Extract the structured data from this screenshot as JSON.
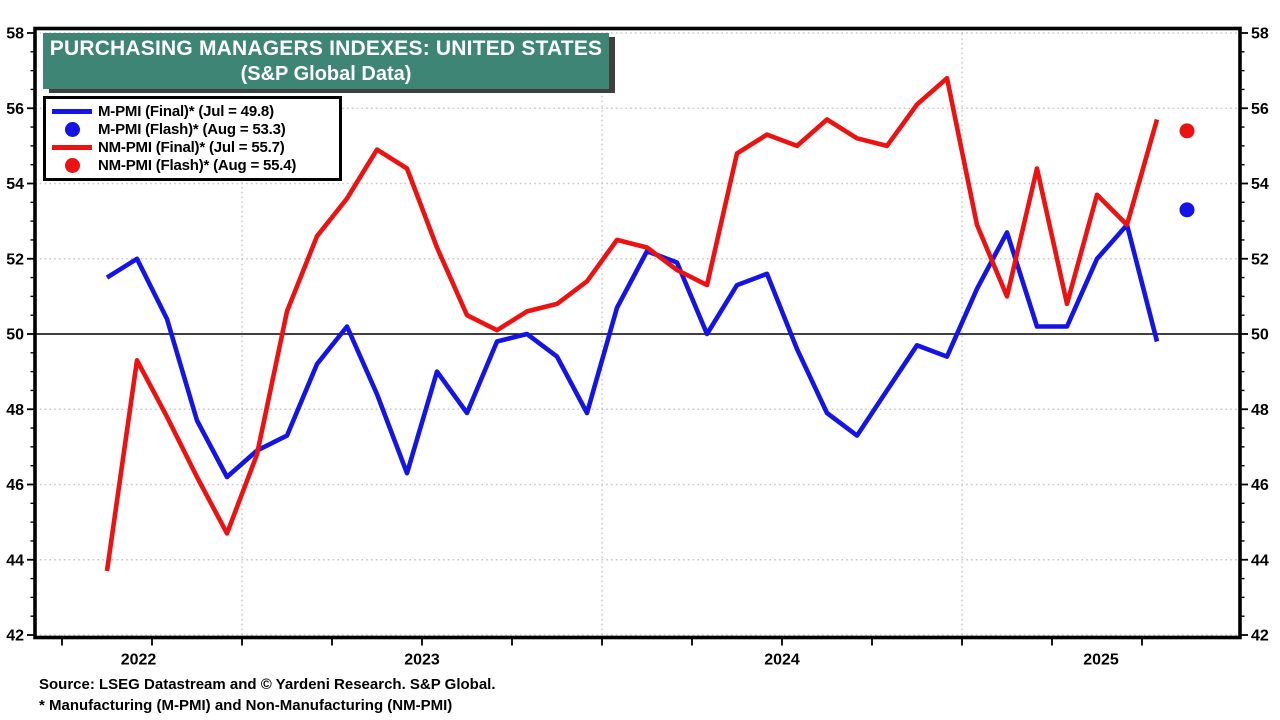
{
  "title": {
    "line1": "PURCHASING MANAGERS INDEXES: UNITED STATES",
    "line2": "(S&P Global Data)",
    "banner_color": "#3e8576"
  },
  "legend": {
    "items": [
      {
        "swatch": "line",
        "color": "#1414e6",
        "label": "M-PMI (Final)* (Jul = 49.8)"
      },
      {
        "swatch": "dot",
        "color": "#1414e6",
        "label": "M-PMI (Flash)* (Aug = 53.3)"
      },
      {
        "swatch": "line",
        "color": "#ed1212",
        "label": "NM-PMI (Final)* (Jul = 55.7)"
      },
      {
        "swatch": "dot",
        "color": "#ed1212",
        "label": "NM-PMI (Flash)* (Aug = 55.4)"
      }
    ]
  },
  "footer": {
    "source": "Source: LSEG Datastream and © Yardeni Research. S&P Global.",
    "footnote": "* Manufacturing (M-PMI) and Non-Manufacturing (NM-PMI)"
  },
  "chart_data": {
    "type": "line",
    "title": "Purchasing Managers Indexes: United States (S&P Global Data)",
    "ylim": [
      42,
      58
    ],
    "y_major_step": 2,
    "y_minor_step": 0.5,
    "baseline": 50,
    "grid": "dotted horizontal at even values, dotted vertical at year starts, solid line at 50",
    "x_year_labels": [
      "2022",
      "2023",
      "2024",
      "2025"
    ],
    "months": [
      "Aug 2022",
      "Sep 2022",
      "Oct 2022",
      "Nov 2022",
      "Dec 2022",
      "Jan 2023",
      "Feb 2023",
      "Mar 2023",
      "Apr 2023",
      "May 2023",
      "Jun 2023",
      "Jul 2023",
      "Aug 2023",
      "Sep 2023",
      "Oct 2023",
      "Nov 2023",
      "Dec 2023",
      "Jan 2024",
      "Feb 2024",
      "Mar 2024",
      "Apr 2024",
      "May 2024",
      "Jun 2024",
      "Jul 2024",
      "Aug 2024",
      "Sep 2024",
      "Oct 2024",
      "Nov 2024",
      "Dec 2024",
      "Jan 2025",
      "Feb 2025",
      "Mar 2025",
      "Apr 2025",
      "May 2025",
      "Jun 2025",
      "Jul 2025"
    ],
    "series": [
      {
        "name": "M-PMI (Final)",
        "color": "#1414e6",
        "values": [
          51.5,
          52.0,
          50.4,
          47.7,
          46.2,
          46.9,
          47.3,
          49.2,
          50.2,
          48.4,
          46.3,
          49.0,
          47.9,
          49.8,
          50.0,
          49.4,
          47.9,
          50.7,
          52.2,
          51.9,
          50.0,
          51.3,
          51.6,
          49.6,
          47.9,
          47.3,
          48.5,
          49.7,
          49.4,
          51.2,
          52.7,
          50.2,
          50.2,
          52.0,
          52.9,
          49.8
        ]
      },
      {
        "name": "NM-PMI (Final)",
        "color": "#ed1212",
        "values": [
          43.7,
          49.3,
          47.8,
          46.2,
          44.7,
          46.8,
          50.6,
          52.6,
          53.6,
          54.9,
          54.4,
          52.3,
          50.5,
          50.1,
          50.6,
          50.8,
          51.4,
          52.5,
          52.3,
          51.7,
          51.3,
          54.8,
          55.3,
          55.0,
          55.7,
          55.2,
          55.0,
          56.1,
          56.8,
          52.9,
          51.0,
          54.4,
          50.8,
          53.7,
          52.9,
          55.7
        ]
      }
    ],
    "flash_points": [
      {
        "name": "M-PMI (Flash)",
        "month": "Aug 2025",
        "value": 53.3,
        "color": "#1414e6"
      },
      {
        "name": "NM-PMI (Flash)",
        "month": "Aug 2025",
        "value": 55.4,
        "color": "#ed1212"
      }
    ],
    "legend_position": "top-left"
  }
}
